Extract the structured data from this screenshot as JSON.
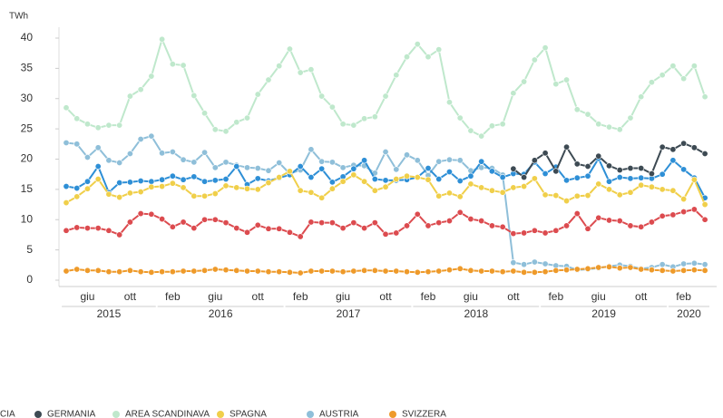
{
  "chart_data": {
    "type": "line",
    "y_label": "TWh",
    "categories": [
      null,
      null,
      "giu",
      null,
      null,
      null,
      "ott",
      null,
      null,
      null,
      "feb",
      null,
      null,
      null,
      "giu",
      null,
      null,
      null,
      "ott",
      null,
      null,
      null,
      "feb",
      null,
      null,
      null,
      "giu",
      null,
      null,
      null,
      "ott",
      null,
      null,
      null,
      "feb",
      null,
      null,
      null,
      "giu",
      null,
      null,
      null,
      "ott",
      null,
      null,
      null,
      "feb",
      null,
      null,
      null,
      "giu",
      null,
      null,
      null,
      "ott",
      null,
      null,
      null,
      "feb",
      null,
      null
    ],
    "x_groups": [
      {
        "label": "2015",
        "count": 9
      },
      {
        "label": "2016",
        "count": 12
      },
      {
        "label": "2017",
        "count": 12
      },
      {
        "label": "2018",
        "count": 12
      },
      {
        "label": "2019",
        "count": 12
      },
      {
        "label": "2020",
        "count": 4
      }
    ],
    "ylim": [
      0,
      40
    ],
    "yticks": [
      0,
      5,
      10,
      15,
      20,
      25,
      30,
      35,
      40
    ],
    "grid": false,
    "series": [
      {
        "name": "CIA",
        "color": "#dc4b4f",
        "values": [
          8.2,
          8.7,
          8.6,
          8.6,
          8.2,
          7.5,
          9.6,
          11.0,
          10.9,
          10.1,
          8.8,
          9.6,
          8.6,
          10.0,
          10.0,
          9.5,
          8.6,
          7.9,
          9.1,
          8.5,
          8.5,
          7.9,
          7.2,
          9.6,
          9.5,
          9.5,
          8.6,
          9.5,
          8.6,
          9.5,
          7.6,
          7.8,
          9.0,
          10.9,
          9.0,
          9.5,
          9.8,
          11.2,
          10.1,
          9.8,
          9.0,
          8.8,
          7.7,
          7.8,
          8.2,
          7.8,
          8.2,
          9.0,
          11.0,
          8.5,
          10.3,
          9.9,
          9.8,
          9.0,
          8.8,
          9.6,
          10.6,
          10.8,
          11.3,
          11.7,
          10.0
        ]
      },
      {
        "name": "GERMANIA",
        "color": "#3d4a53",
        "values": [
          null,
          null,
          null,
          null,
          null,
          null,
          null,
          null,
          null,
          null,
          null,
          null,
          null,
          null,
          null,
          null,
          null,
          null,
          null,
          null,
          null,
          null,
          null,
          null,
          null,
          null,
          null,
          null,
          null,
          null,
          null,
          null,
          null,
          null,
          null,
          null,
          null,
          null,
          null,
          null,
          null,
          null,
          18.4,
          17.0,
          19.8,
          21.0,
          18.0,
          22.0,
          19.2,
          18.8,
          20.5,
          18.9,
          18.2,
          18.5,
          18.5,
          17.6,
          22.0,
          21.6,
          22.6,
          21.9,
          20.9
        ]
      },
      {
        "name": "AREA SCANDINAVA",
        "color": "#bfe8cc",
        "values": [
          28.5,
          26.7,
          25.8,
          25.2,
          25.6,
          25.6,
          30.4,
          31.5,
          33.7,
          39.8,
          35.7,
          35.5,
          30.5,
          27.6,
          24.9,
          24.6,
          26.1,
          26.8,
          30.7,
          33.1,
          35.4,
          38.2,
          34.3,
          34.8,
          30.4,
          28.6,
          25.8,
          25.6,
          26.7,
          27.0,
          30.4,
          33.9,
          36.9,
          39.0,
          36.9,
          38.1,
          29.4,
          26.8,
          24.7,
          23.8,
          25.5,
          25.8,
          30.9,
          32.8,
          36.4,
          38.4,
          32.4,
          33.1,
          28.2,
          27.4,
          25.8,
          25.3,
          24.9,
          26.8,
          30.3,
          32.7,
          33.9,
          35.4,
          33.3,
          35.4,
          30.3
        ]
      },
      {
        "name": "SPAGNA",
        "color": "#f0cf4a",
        "values": [
          12.8,
          13.8,
          15.1,
          16.7,
          14.2,
          13.7,
          14.4,
          14.6,
          15.4,
          15.5,
          16.0,
          15.3,
          13.9,
          13.9,
          14.3,
          15.6,
          15.3,
          15.1,
          15.0,
          16.1,
          17.0,
          18.0,
          14.8,
          14.5,
          13.6,
          15.1,
          16.3,
          17.4,
          16.3,
          14.8,
          15.4,
          16.7,
          17.2,
          17.0,
          16.6,
          13.9,
          14.4,
          13.8,
          15.9,
          15.3,
          14.8,
          14.5,
          15.3,
          15.5,
          16.8,
          14.1,
          14.0,
          13.1,
          13.9,
          14.0,
          15.9,
          15.0,
          14.1,
          14.5,
          15.7,
          15.4,
          15.0,
          14.8,
          13.4,
          16.6,
          12.5
        ]
      },
      {
        "name": "AUSTRIA",
        "color": "#8fbfd9",
        "values": [
          22.7,
          22.5,
          20.3,
          21.9,
          19.8,
          19.4,
          20.9,
          23.3,
          23.8,
          21.0,
          21.2,
          19.9,
          19.5,
          21.1,
          18.6,
          19.5,
          19.0,
          18.6,
          18.5,
          18.1,
          19.4,
          17.6,
          18.2,
          21.6,
          19.6,
          19.5,
          18.6,
          19.0,
          18.9,
          17.7,
          21.2,
          18.3,
          20.7,
          19.8,
          17.3,
          19.6,
          19.9,
          19.8,
          18.1,
          18.6,
          18.5,
          17.4,
          2.9,
          2.6,
          3.0,
          2.7,
          2.4,
          2.3,
          1.7,
          1.8,
          2.0,
          2.3,
          2.5,
          2.3,
          1.9,
          2.1,
          2.6,
          2.2,
          2.7,
          2.8,
          2.6
        ]
      },
      {
        "name": "SVIZZERA",
        "color": "#ee9a2a",
        "values": [
          1.5,
          1.8,
          1.6,
          1.6,
          1.4,
          1.4,
          1.6,
          1.4,
          1.3,
          1.4,
          1.4,
          1.5,
          1.5,
          1.6,
          1.8,
          1.7,
          1.6,
          1.5,
          1.5,
          1.4,
          1.4,
          1.3,
          1.2,
          1.5,
          1.5,
          1.5,
          1.4,
          1.5,
          1.6,
          1.6,
          1.5,
          1.5,
          1.4,
          1.3,
          1.4,
          1.5,
          1.7,
          1.9,
          1.6,
          1.5,
          1.5,
          1.4,
          1.5,
          1.3,
          1.3,
          1.4,
          1.6,
          1.7,
          1.8,
          1.9,
          2.1,
          2.2,
          2.0,
          2.1,
          1.8,
          1.7,
          1.6,
          1.5,
          1.6,
          1.7,
          1.6
        ]
      },
      {
        "color": "#2e8fd6",
        "values": [
          15.5,
          15.2,
          16.3,
          18.8,
          14.5,
          16.1,
          16.2,
          16.4,
          16.3,
          16.6,
          17.2,
          16.6,
          17.1,
          16.3,
          16.5,
          16.7,
          18.8,
          15.8,
          16.8,
          16.4,
          16.9,
          17.4,
          18.8,
          17.0,
          18.4,
          16.2,
          17.1,
          18.4,
          19.8,
          16.7,
          16.5,
          16.5,
          16.6,
          17.0,
          18.5,
          16.7,
          17.9,
          16.4,
          17.2,
          19.6,
          18.0,
          17.0,
          17.6,
          17.5,
          19.5,
          17.6,
          18.7,
          16.5,
          16.9,
          17.2,
          20.1,
          16.3,
          17.0,
          16.8,
          16.9,
          16.8,
          17.5,
          19.8,
          18.3,
          16.9,
          13.6
        ]
      }
    ]
  }
}
